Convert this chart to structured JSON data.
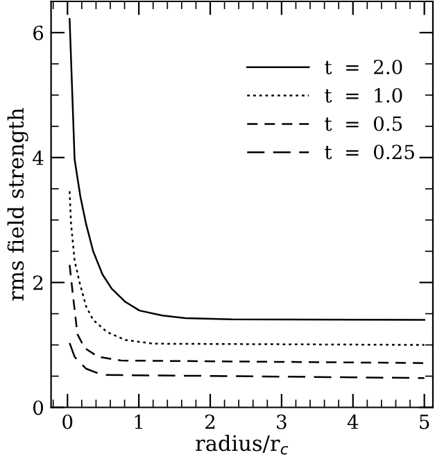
{
  "chart_data": {
    "type": "line",
    "xlabel": "radius/r$_{c}$",
    "ylabel": "rms field strength",
    "xlim": [
      -0.23,
      5.12
    ],
    "ylim": [
      0,
      6.5
    ],
    "xticks": [
      0,
      1,
      2,
      3,
      4,
      5
    ],
    "yticks": [
      0,
      2,
      4,
      6
    ],
    "grid": false,
    "legend": "top right",
    "marker": "none",
    "series": [
      {
        "name": "t  =  2.0",
        "color": "#000000",
        "line_style": "solid",
        "x": [
          0.03,
          0.1,
          0.18,
          0.26,
          0.36,
          0.49,
          0.62,
          0.81,
          1.01,
          1.33,
          1.65,
          2.3,
          5.0
        ],
        "values": [
          6.22,
          3.97,
          3.38,
          2.94,
          2.5,
          2.13,
          1.9,
          1.69,
          1.55,
          1.47,
          1.43,
          1.41,
          1.4
        ]
      },
      {
        "name": "t  =  1.0",
        "color": "#000000",
        "line_style": "dotted",
        "x": [
          0.03,
          0.05,
          0.1,
          0.17,
          0.26,
          0.36,
          0.55,
          0.81,
          1.2,
          5.0
        ],
        "values": [
          3.46,
          2.94,
          2.35,
          2.0,
          1.62,
          1.4,
          1.21,
          1.08,
          1.02,
          1.0
        ]
      },
      {
        "name": "t  =  0.5",
        "color": "#000000",
        "line_style": "dashed",
        "x": [
          0.03,
          0.08,
          0.14,
          0.24,
          0.43,
          0.75,
          5.0
        ],
        "values": [
          2.28,
          1.76,
          1.17,
          0.95,
          0.81,
          0.75,
          0.71
        ]
      },
      {
        "name": "t  =  0.25",
        "color": "#000000",
        "line_style": "long dashed",
        "x": [
          0.03,
          0.1,
          0.26,
          0.49,
          5.0
        ],
        "values": [
          1.03,
          0.81,
          0.62,
          0.52,
          0.47
        ]
      }
    ]
  }
}
